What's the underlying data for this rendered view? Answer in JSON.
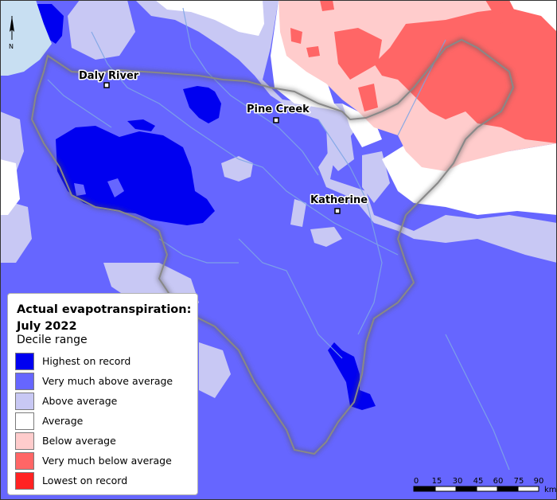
{
  "legend": {
    "title": "Actual evapotranspiration: July 2022",
    "subtitle": "Decile range",
    "items": [
      {
        "label": "Highest on record",
        "color": "#0000f0"
      },
      {
        "label": "Very much above average",
        "color": "#6666ff"
      },
      {
        "label": "Above average",
        "color": "#c8c8f4"
      },
      {
        "label": "Average",
        "color": "#ffffff"
      },
      {
        "label": "Below average",
        "color": "#ffcccc"
      },
      {
        "label": "Very much below average",
        "color": "#ff6666"
      },
      {
        "label": "Lowest on record",
        "color": "#ff2222"
      }
    ]
  },
  "towns": [
    {
      "name": "Daly River"
    },
    {
      "name": "Pine Creek"
    },
    {
      "name": "Katherine"
    }
  ],
  "scale_bar": {
    "ticks": [
      "0",
      "15",
      "30",
      "45",
      "60",
      "75",
      "90"
    ],
    "unit": "km"
  },
  "north_arrow": {
    "label": "N",
    "icon": "north-arrow-icon"
  },
  "colors": {
    "sea": "#c8dff2",
    "river": "#7fa6e6",
    "boundary": "#888888"
  }
}
